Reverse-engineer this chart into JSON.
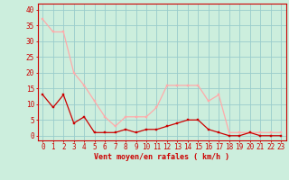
{
  "hours": [
    0,
    1,
    2,
    3,
    4,
    5,
    6,
    7,
    8,
    9,
    10,
    11,
    12,
    13,
    14,
    15,
    16,
    17,
    18,
    19,
    20,
    21,
    22,
    23
  ],
  "wind_avg": [
    13,
    9,
    13,
    4,
    6,
    1,
    1,
    1,
    2,
    1,
    2,
    2,
    3,
    4,
    5,
    5,
    2,
    1,
    0,
    0,
    1,
    0,
    0,
    0
  ],
  "wind_gust": [
    37,
    33,
    33,
    20,
    16,
    11,
    6,
    3,
    6,
    6,
    6,
    9,
    16,
    16,
    16,
    16,
    11,
    13,
    1,
    1,
    1,
    1,
    1,
    1
  ],
  "wind_avg_color": "#cc0000",
  "wind_gust_color": "#ffaaaa",
  "background_color": "#cceedd",
  "grid_color": "#99cccc",
  "xlabel": "Vent moyen/en rafales ( km/h )",
  "xlabel_color": "#cc0000",
  "ylabel_ticks": [
    0,
    5,
    10,
    15,
    20,
    25,
    30,
    35,
    40
  ],
  "ylim": [
    -1.5,
    42
  ],
  "xlim": [
    -0.5,
    23.5
  ],
  "tick_fontsize": 5.5,
  "xlabel_fontsize": 6.0
}
